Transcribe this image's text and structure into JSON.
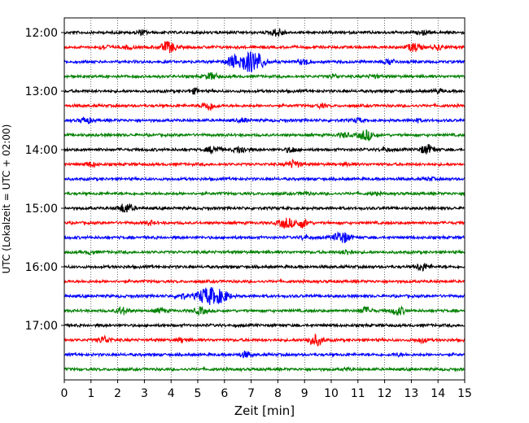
{
  "chart_data": {
    "type": "line",
    "title": "",
    "xlabel": "Zeit  [min]",
    "ylabel": "UTC (Lokalzeit = UTC + 02:00)",
    "xlim": [
      0,
      15
    ],
    "x_ticks": [
      0,
      1,
      2,
      3,
      4,
      5,
      6,
      7,
      8,
      9,
      10,
      11,
      12,
      13,
      14,
      15
    ],
    "x_tick_labels": [
      "0",
      "1",
      "2",
      "3",
      "4",
      "5",
      "6",
      "7",
      "8",
      "9",
      "10",
      "11",
      "12",
      "13",
      "14",
      "15"
    ],
    "x_grid": "dotted vertical lines at each minute",
    "y_tick_labels": [
      "12:00",
      "13:00",
      "14:00",
      "15:00",
      "16:00",
      "17:00"
    ],
    "row_colors": [
      "#000000",
      "#ff0000",
      "#0000ff",
      "#008000"
    ],
    "rows": [
      {
        "time": "12:00",
        "color": "#000000",
        "events": [
          {
            "t": 2.9,
            "amp": 1.2
          },
          {
            "t": 8.0,
            "amp": 2.0
          },
          {
            "t": 13.5,
            "amp": 0.9
          }
        ]
      },
      {
        "time": "12:15",
        "color": "#ff0000",
        "events": [
          {
            "t": 1.5,
            "amp": 1.2
          },
          {
            "t": 2.4,
            "amp": 1.0
          },
          {
            "t": 3.9,
            "amp": 2.8
          },
          {
            "t": 13.1,
            "amp": 2.2
          },
          {
            "t": 14.0,
            "amp": 1.2
          }
        ]
      },
      {
        "time": "12:30",
        "color": "#0000ff",
        "events": [
          {
            "t": 6.3,
            "amp": 2.5
          },
          {
            "t": 6.9,
            "amp": 5.0
          },
          {
            "t": 7.3,
            "amp": 2.5
          },
          {
            "t": 9.0,
            "amp": 1.5
          },
          {
            "t": 12.2,
            "amp": 1.4
          }
        ]
      },
      {
        "time": "12:45",
        "color": "#008000",
        "events": [
          {
            "t": 5.5,
            "amp": 1.8
          },
          {
            "t": 10.1,
            "amp": 0.9
          },
          {
            "t": 11.6,
            "amp": 0.9
          }
        ]
      },
      {
        "time": "13:00",
        "color": "#000000",
        "events": [
          {
            "t": 4.9,
            "amp": 1.2
          },
          {
            "t": 14.0,
            "amp": 1.0
          }
        ]
      },
      {
        "time": "13:15",
        "color": "#ff0000",
        "events": [
          {
            "t": 5.4,
            "amp": 2.2
          },
          {
            "t": 9.6,
            "amp": 0.9
          }
        ]
      },
      {
        "time": "13:30",
        "color": "#0000ff",
        "events": [
          {
            "t": 0.8,
            "amp": 1.6
          },
          {
            "t": 6.7,
            "amp": 1.0
          },
          {
            "t": 11.0,
            "amp": 1.2
          },
          {
            "t": 13.2,
            "amp": 0.9
          }
        ]
      },
      {
        "time": "13:45",
        "color": "#008000",
        "events": [
          {
            "t": 10.5,
            "amp": 1.2
          },
          {
            "t": 11.3,
            "amp": 2.6
          }
        ]
      },
      {
        "time": "14:00",
        "color": "#000000",
        "events": [
          {
            "t": 5.6,
            "amp": 2.0
          },
          {
            "t": 6.6,
            "amp": 1.8
          },
          {
            "t": 8.5,
            "amp": 1.4
          },
          {
            "t": 12.0,
            "amp": 0.9
          },
          {
            "t": 13.6,
            "amp": 2.4
          }
        ]
      },
      {
        "time": "14:15",
        "color": "#ff0000",
        "events": [
          {
            "t": 1.0,
            "amp": 1.2
          },
          {
            "t": 8.6,
            "amp": 2.0
          },
          {
            "t": 10.6,
            "amp": 0.8
          }
        ]
      },
      {
        "time": "14:30",
        "color": "#0000ff",
        "events": [
          {
            "t": 13.7,
            "amp": 0.8
          }
        ]
      },
      {
        "time": "14:45",
        "color": "#008000",
        "events": [
          {
            "t": 9.0,
            "amp": 0.8
          },
          {
            "t": 11.6,
            "amp": 0.7
          }
        ]
      },
      {
        "time": "15:00",
        "color": "#000000",
        "events": [
          {
            "t": 2.3,
            "amp": 2.5
          }
        ]
      },
      {
        "time": "15:15",
        "color": "#ff0000",
        "events": [
          {
            "t": 3.2,
            "amp": 1.0
          },
          {
            "t": 8.3,
            "amp": 2.6
          },
          {
            "t": 8.9,
            "amp": 2.2
          }
        ]
      },
      {
        "time": "15:30",
        "color": "#0000ff",
        "events": [
          {
            "t": 10.4,
            "amp": 3.0
          },
          {
            "t": 9.0,
            "amp": 1.0
          }
        ]
      },
      {
        "time": "15:45",
        "color": "#008000",
        "events": [
          {
            "t": 1.0,
            "amp": 0.8
          },
          {
            "t": 10.6,
            "amp": 1.2
          }
        ]
      },
      {
        "time": "16:00",
        "color": "#000000",
        "events": [
          {
            "t": 13.4,
            "amp": 2.0
          }
        ]
      },
      {
        "time": "16:15",
        "color": "#ff0000",
        "events": []
      },
      {
        "time": "16:30",
        "color": "#0000ff",
        "events": [
          {
            "t": 5.2,
            "amp": 3.0
          },
          {
            "t": 5.6,
            "amp": 3.5
          },
          {
            "t": 6.0,
            "amp": 2.0
          },
          {
            "t": 4.4,
            "amp": 1.5
          }
        ]
      },
      {
        "time": "16:45",
        "color": "#008000",
        "events": [
          {
            "t": 2.2,
            "amp": 1.8
          },
          {
            "t": 3.6,
            "amp": 1.2
          },
          {
            "t": 5.1,
            "amp": 1.8
          },
          {
            "t": 11.3,
            "amp": 1.8
          },
          {
            "t": 12.5,
            "amp": 2.2
          }
        ]
      },
      {
        "time": "17:00",
        "color": "#000000",
        "events": []
      },
      {
        "time": "17:15",
        "color": "#ff0000",
        "events": [
          {
            "t": 1.5,
            "amp": 1.8
          },
          {
            "t": 4.4,
            "amp": 1.0
          },
          {
            "t": 9.4,
            "amp": 2.8
          },
          {
            "t": 13.4,
            "amp": 1.2
          }
        ]
      },
      {
        "time": "17:30",
        "color": "#0000ff",
        "events": [
          {
            "t": 6.8,
            "amp": 1.6
          },
          {
            "t": 12.5,
            "amp": 0.6
          }
        ]
      },
      {
        "time": "17:45",
        "color": "#008000",
        "events": [
          {
            "t": 10.6,
            "amp": 0.6
          }
        ]
      }
    ]
  }
}
